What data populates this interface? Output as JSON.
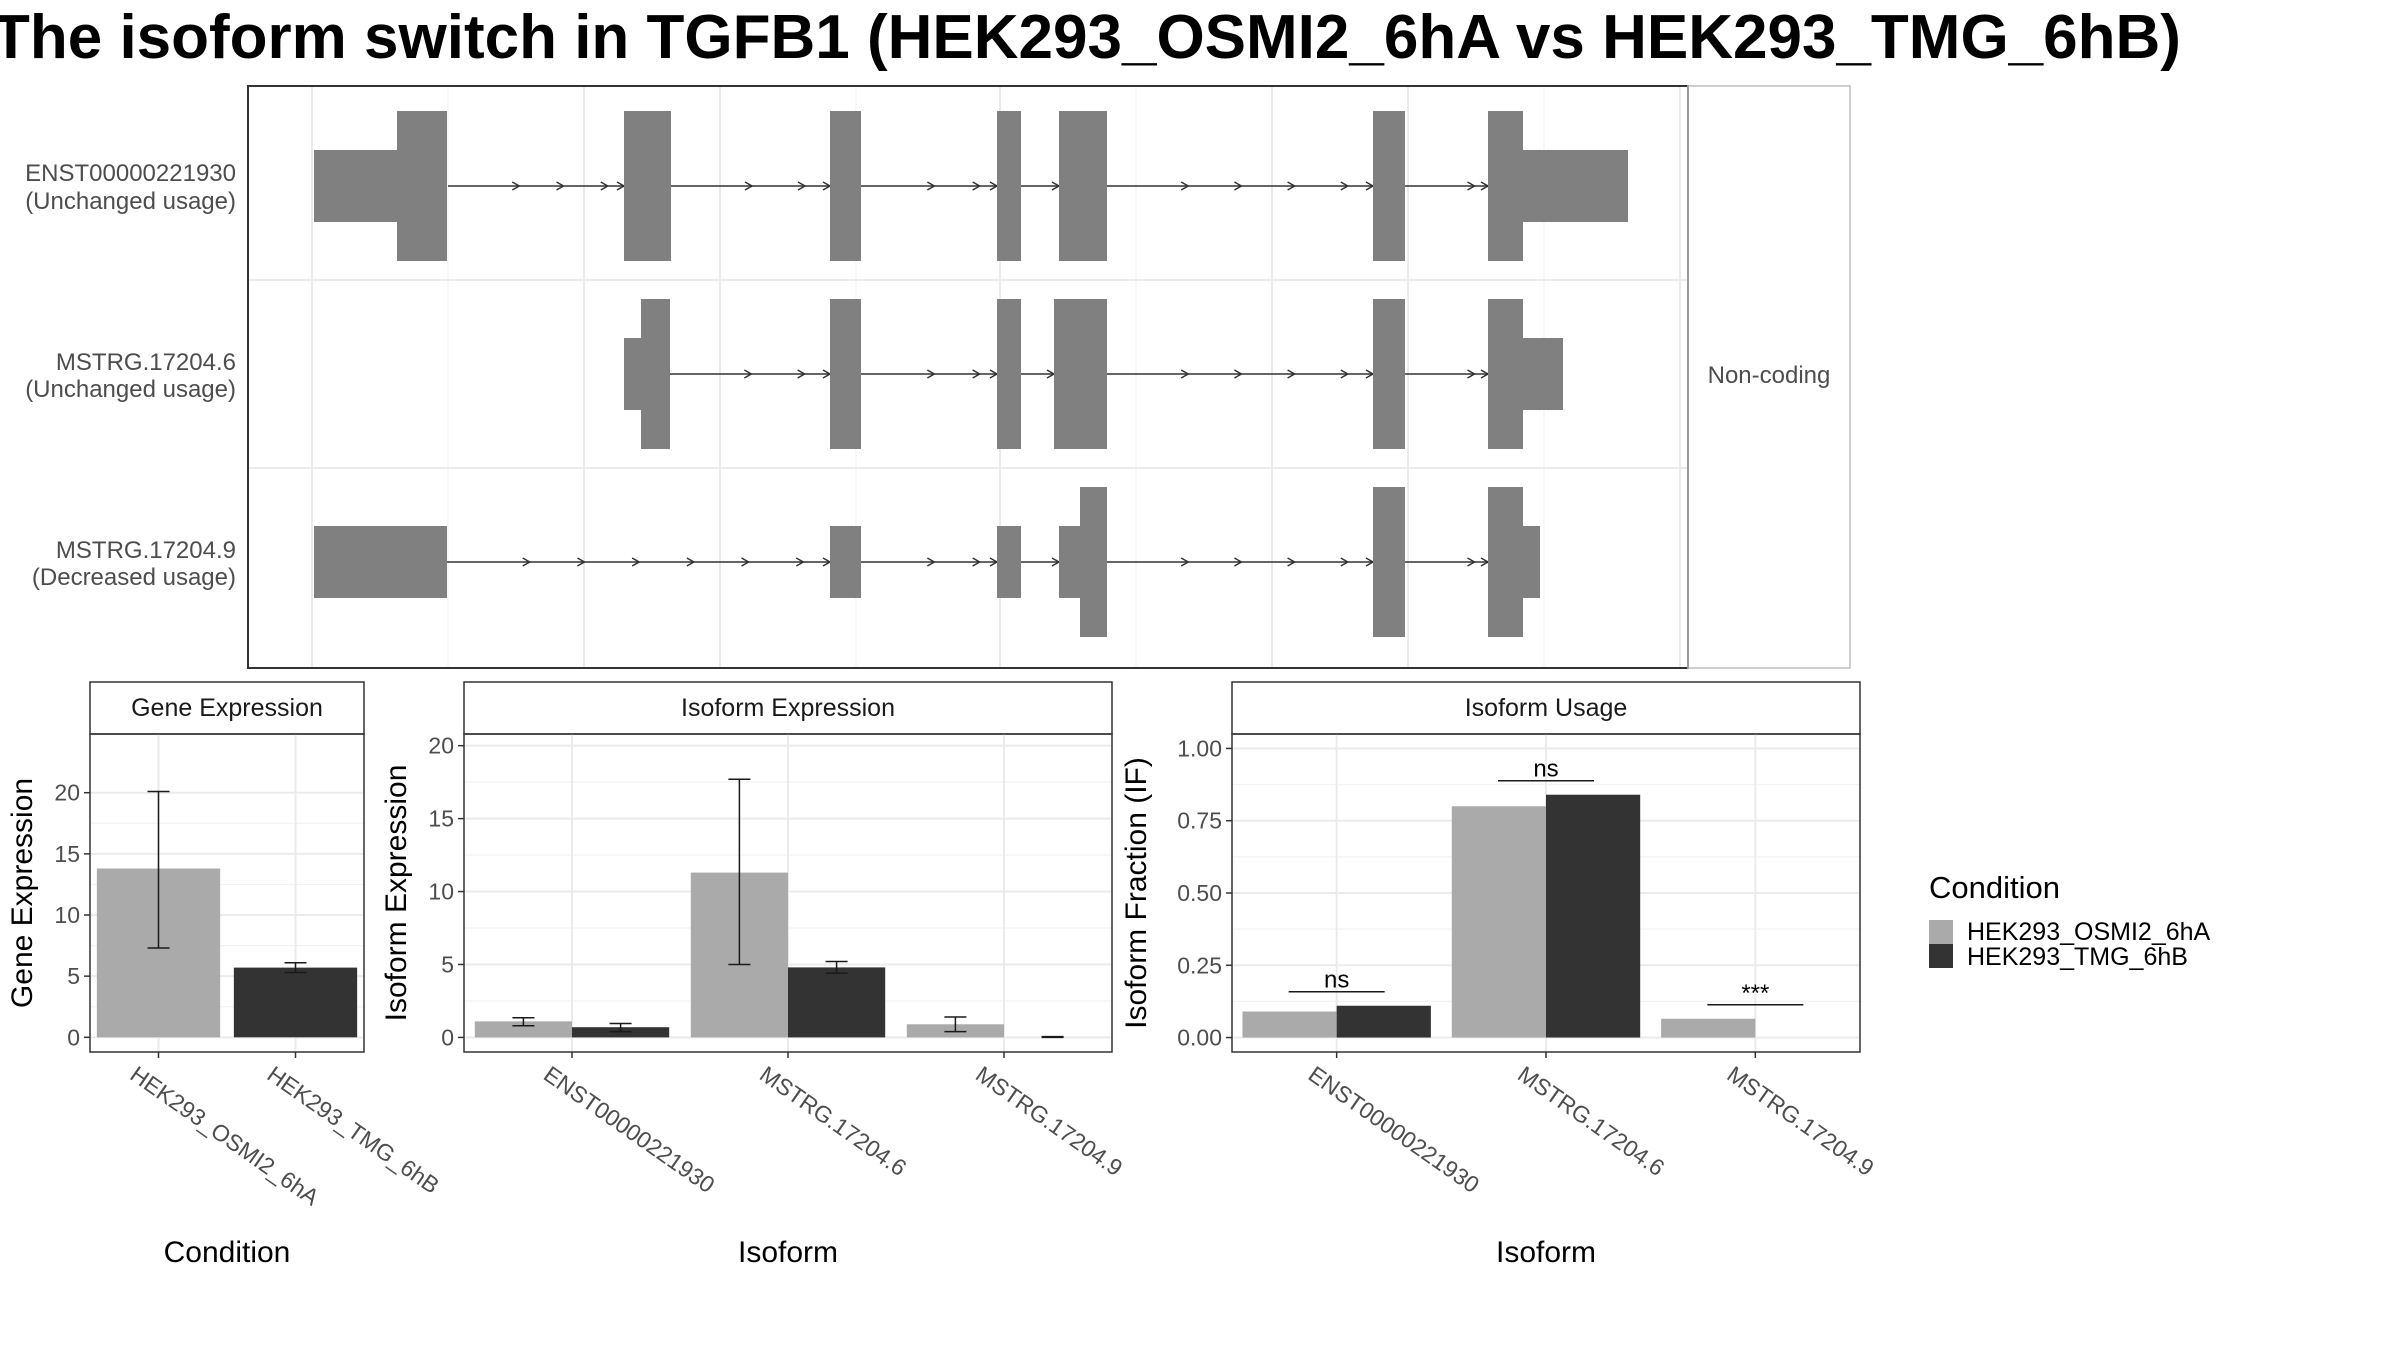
{
  "title": "The isoform switch in TGFB1 (HEK293_OSMI2_6hA vs HEK293_TMG_6hB)",
  "structure_panel": {
    "isoforms": [
      {
        "id": "ENST00000221930",
        "usage": "(Unchanged usage)"
      },
      {
        "id": "MSTRG.17204.6",
        "usage": "(Unchanged usage)"
      },
      {
        "id": "MSTRG.17204.9",
        "usage": "(Decreased usage)"
      }
    ],
    "facets": [
      "",
      "Non-coding"
    ]
  },
  "chart_data": [
    {
      "type": "bar",
      "title": "Gene Expression",
      "xlabel": "Condition",
      "ylabel": "Gene Expression",
      "categories": [
        "HEK293_OSMI2_6hA",
        "HEK293_TMG_6hB"
      ],
      "values": [
        13.8,
        5.7
      ],
      "error_low": [
        7.3,
        5.3
      ],
      "error_high": [
        20.1,
        6.1
      ],
      "colors": [
        "#aaaaaa",
        "#333333"
      ],
      "ylim": [
        -1.2,
        24.8
      ],
      "yticks": [
        0,
        5,
        10,
        15,
        20
      ]
    },
    {
      "type": "bar",
      "title": "Isoform Expression",
      "xlabel": "Isoform",
      "ylabel": "Isoform Expression",
      "categories": [
        "ENST00000221930",
        "MSTRG.17204.6",
        "MSTRG.17204.9"
      ],
      "series": [
        {
          "name": "HEK293_OSMI2_6hA",
          "values": [
            1.1,
            11.3,
            0.9
          ],
          "error_low": [
            0.8,
            5.0,
            0.4
          ],
          "error_high": [
            1.35,
            17.7,
            1.4
          ]
        },
        {
          "name": "HEK293_TMG_6hB",
          "values": [
            0.7,
            4.8,
            0.0
          ],
          "error_low": [
            0.4,
            4.4,
            0.0
          ],
          "error_high": [
            0.95,
            5.2,
            0.05
          ]
        }
      ],
      "ylim": [
        -1.0,
        20.8
      ],
      "yticks": [
        0,
        5,
        10,
        15,
        20
      ]
    },
    {
      "type": "bar",
      "title": "Isoform Usage",
      "xlabel": "Isoform",
      "ylabel": "Isoform Fraction (IF)",
      "categories": [
        "ENST00000221930",
        "MSTRG.17204.6",
        "MSTRG.17204.9"
      ],
      "series": [
        {
          "name": "HEK293_OSMI2_6hA",
          "values": [
            0.09,
            0.8,
            0.065
          ]
        },
        {
          "name": "HEK293_TMG_6hB",
          "values": [
            0.11,
            0.84,
            0.0
          ]
        }
      ],
      "significance": [
        "ns",
        "ns",
        "***"
      ],
      "ylim": [
        -0.05,
        1.05
      ],
      "yticks": [
        "0.00",
        "0.25",
        "0.50",
        "0.75",
        "1.00"
      ]
    }
  ],
  "legend": {
    "title": "Condition",
    "items": [
      {
        "label": "HEK293_OSMI2_6hA",
        "color": "#aaaaaa"
      },
      {
        "label": "HEK293_TMG_6hB",
        "color": "#333333"
      }
    ]
  }
}
